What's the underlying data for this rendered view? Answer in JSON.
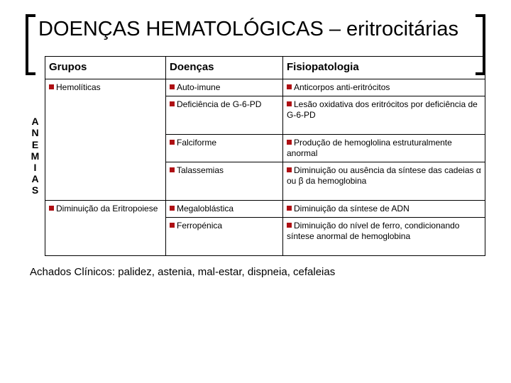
{
  "title": "DOENÇAS HEMATOLÓGICAS – eritrocitárias",
  "side_label": [
    "A",
    "N",
    "E",
    "M",
    "I",
    "A",
    "S"
  ],
  "headers": {
    "c1": "Grupos",
    "c2": "Doenças",
    "c3": "Fisiopatologia"
  },
  "rows": [
    {
      "g": "Hemolíticas",
      "d": "Auto-imune",
      "f": "Anticorpos anti-eritrócitos"
    },
    {
      "g": "",
      "d": "Deficiência de G-6-PD",
      "f": "Lesão oxidativa dos eritrócitos por deficiência de G-6-PD"
    },
    {
      "g": "",
      "d": "Falciforme",
      "f": "Produção de hemoglolina estruturalmente anormal"
    },
    {
      "g": "",
      "d": "Talassemias",
      "f": "Diminuição ou ausência da síntese das cadeias α ou β da hemoglobina"
    },
    {
      "g": "Diminuição da Eritropoiese",
      "d": "Megaloblástica",
      "f": "Diminuição da síntese de ADN"
    },
    {
      "g": "",
      "d": "Ferropénica",
      "f": "Diminuição do nível de ferro, condicionando síntese anormal  de hemoglobina"
    }
  ],
  "rowspans": [
    4,
    0,
    0,
    0,
    2,
    0
  ],
  "footer": "Achados Clínicos: palidez, astenia, mal-estar, dispneia, cefaleias",
  "bullet_color": "#ae0f13"
}
